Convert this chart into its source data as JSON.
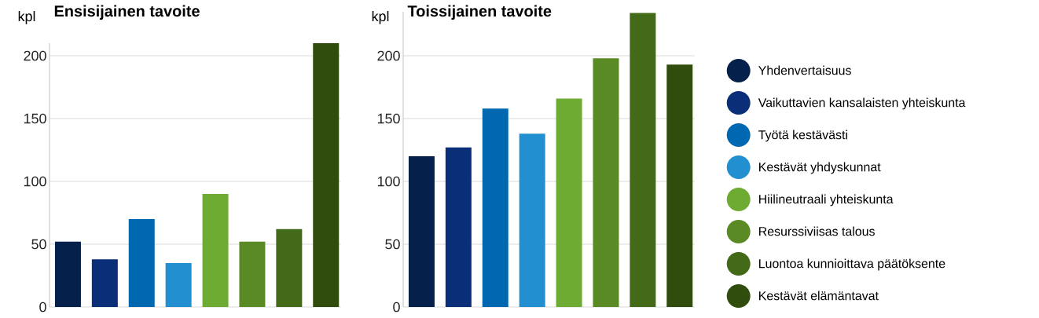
{
  "chart_data": [
    {
      "type": "bar",
      "title": "Ensisijainen tavoite",
      "ylabel": "kpl",
      "categories": [
        null,
        null,
        null,
        null,
        null,
        null,
        null,
        null
      ],
      "series": [
        {
          "color": "#05204a",
          "values": [
            52,
            null,
            null,
            null,
            null,
            null,
            null,
            null
          ]
        },
        {
          "color": "#0a2f78",
          "values": [
            null,
            38,
            null,
            null,
            null,
            null,
            null,
            null
          ]
        },
        {
          "color": "#0068b0",
          "values": [
            null,
            null,
            70,
            null,
            null,
            null,
            null,
            null
          ]
        },
        {
          "color": "#2290d0",
          "values": [
            null,
            null,
            null,
            35,
            null,
            null,
            null,
            null
          ]
        },
        {
          "color": "#6eab32",
          "values": [
            null,
            null,
            null,
            null,
            90,
            null,
            null,
            null
          ]
        },
        {
          "color": "#5a8a24",
          "values": [
            null,
            null,
            null,
            null,
            null,
            52,
            null,
            null
          ]
        },
        {
          "color": "#436a18",
          "values": [
            null,
            null,
            null,
            null,
            null,
            null,
            62,
            null
          ]
        },
        {
          "color": "#314d0e",
          "values": [
            null,
            null,
            null,
            null,
            null,
            null,
            null,
            210
          ]
        }
      ],
      "ylim": [
        0,
        210
      ],
      "yticks": [
        0,
        50,
        100,
        150,
        200
      ],
      "grid": "y",
      "tick_labels": "y"
    },
    {
      "type": "bar",
      "title": "Toissijainen tavoite",
      "ylabel": "kpl",
      "categories": [
        null,
        null,
        null,
        null,
        null,
        null,
        null,
        null
      ],
      "series": [
        {
          "name": "Yhdenvertaisuus",
          "color": "#05204a",
          "values": [
            120,
            null,
            null,
            null,
            null,
            null,
            null,
            null
          ]
        },
        {
          "name": "Vaikuttavien kansalaisten yhteiskunta",
          "color": "#0a2f78",
          "values": [
            null,
            127,
            null,
            null,
            null,
            null,
            null,
            null
          ]
        },
        {
          "name": "Työtä kestävästi",
          "color": "#0068b0",
          "values": [
            null,
            null,
            158,
            null,
            null,
            null,
            null,
            null
          ]
        },
        {
          "name": "Kestävät yhdyskunnat",
          "color": "#2290d0",
          "values": [
            null,
            null,
            null,
            138,
            null,
            null,
            null,
            null
          ]
        },
        {
          "name": "Hiilineutraali yhteiskunta",
          "color": "#6eab32",
          "values": [
            null,
            null,
            null,
            null,
            166,
            null,
            null,
            null
          ]
        },
        {
          "name": "Resurssiviisas talous",
          "color": "#5a8a24",
          "values": [
            null,
            null,
            null,
            null,
            null,
            198,
            null,
            null
          ]
        },
        {
          "name": "Luontoa kunnioittava päätöksente",
          "color": "#436a18",
          "values": [
            null,
            null,
            null,
            null,
            null,
            null,
            234,
            null
          ]
        },
        {
          "name": "Kestävät elämäntavat",
          "color": "#314d0e",
          "values": [
            null,
            null,
            null,
            null,
            null,
            null,
            null,
            193
          ]
        }
      ],
      "ylim": [
        0,
        235
      ],
      "yticks": [
        0,
        50,
        100,
        150,
        200
      ],
      "grid": "y",
      "tick_labels": "y",
      "legend": "right"
    }
  ]
}
